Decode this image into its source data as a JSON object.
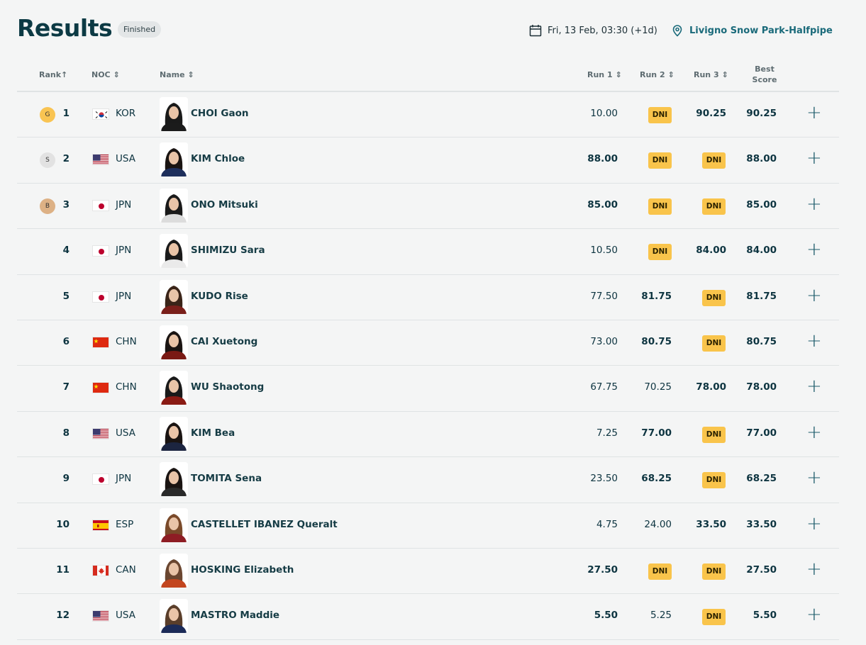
{
  "header": {
    "title": "Results",
    "status": "Finished",
    "date": "Fri, 13 Feb, 03:30 (+1d)",
    "venue": "Livigno Snow Park-Halfpipe"
  },
  "columns": {
    "rank": "Rank",
    "noc": "NOC",
    "name": "Name",
    "run1": "Run 1",
    "run2": "Run 2",
    "run3": "Run 3",
    "best_1": "Best",
    "best_2": "Score"
  },
  "icons": {
    "rank_sort": "arrow-up-icon",
    "sort": "sort-chevrons-icon",
    "date": "calendar-icon",
    "venue": "map-pin-icon",
    "expand": "plus-icon"
  },
  "colors": {
    "gold": "#f9c452",
    "silver": "#e2e2e2",
    "bronze": "#ddb185",
    "dni": "#f9c44b",
    "accent": "#1a6a7a"
  },
  "expand_symbol": "+",
  "rows": [
    {
      "medal": "G",
      "rank": "1",
      "noc": "KOR",
      "name": "CHOI Gaon",
      "run1": "10.00",
      "run2": "DNI",
      "run3": "90.25",
      "best": "90.25"
    },
    {
      "medal": "S",
      "rank": "2",
      "noc": "USA",
      "name": "KIM Chloe",
      "run1": "88.00",
      "run2": "DNI",
      "run3": "DNI",
      "best": "88.00"
    },
    {
      "medal": "B",
      "rank": "3",
      "noc": "JPN",
      "name": "ONO Mitsuki",
      "run1": "85.00",
      "run2": "DNI",
      "run3": "DNI",
      "best": "85.00"
    },
    {
      "medal": "",
      "rank": "4",
      "noc": "JPN",
      "name": "SHIMIZU Sara",
      "run1": "10.50",
      "run2": "DNI",
      "run3": "84.00",
      "best": "84.00"
    },
    {
      "medal": "",
      "rank": "5",
      "noc": "JPN",
      "name": "KUDO Rise",
      "run1": "77.50",
      "run2": "81.75",
      "run3": "DNI",
      "best": "81.75"
    },
    {
      "medal": "",
      "rank": "6",
      "noc": "CHN",
      "name": "CAI Xuetong",
      "run1": "73.00",
      "run2": "80.75",
      "run3": "DNI",
      "best": "80.75"
    },
    {
      "medal": "",
      "rank": "7",
      "noc": "CHN",
      "name": "WU Shaotong",
      "run1": "67.75",
      "run2": "70.25",
      "run3": "78.00",
      "best": "78.00"
    },
    {
      "medal": "",
      "rank": "8",
      "noc": "USA",
      "name": "KIM Bea",
      "run1": "7.25",
      "run2": "77.00",
      "run3": "DNI",
      "best": "77.00"
    },
    {
      "medal": "",
      "rank": "9",
      "noc": "JPN",
      "name": "TOMITA Sena",
      "run1": "23.50",
      "run2": "68.25",
      "run3": "DNI",
      "best": "68.25"
    },
    {
      "medal": "",
      "rank": "10",
      "noc": "ESP",
      "name": "CASTELLET IBANEZ Queralt",
      "run1": "4.75",
      "run2": "24.00",
      "run3": "33.50",
      "best": "33.50"
    },
    {
      "medal": "",
      "rank": "11",
      "noc": "CAN",
      "name": "HOSKING Elizabeth",
      "run1": "27.50",
      "run2": "DNI",
      "run3": "DNI",
      "best": "27.50"
    },
    {
      "medal": "",
      "rank": "12",
      "noc": "USA",
      "name": "MASTRO Maddie",
      "run1": "5.50",
      "run2": "5.25",
      "run3": "DNI",
      "best": "5.50"
    }
  ]
}
